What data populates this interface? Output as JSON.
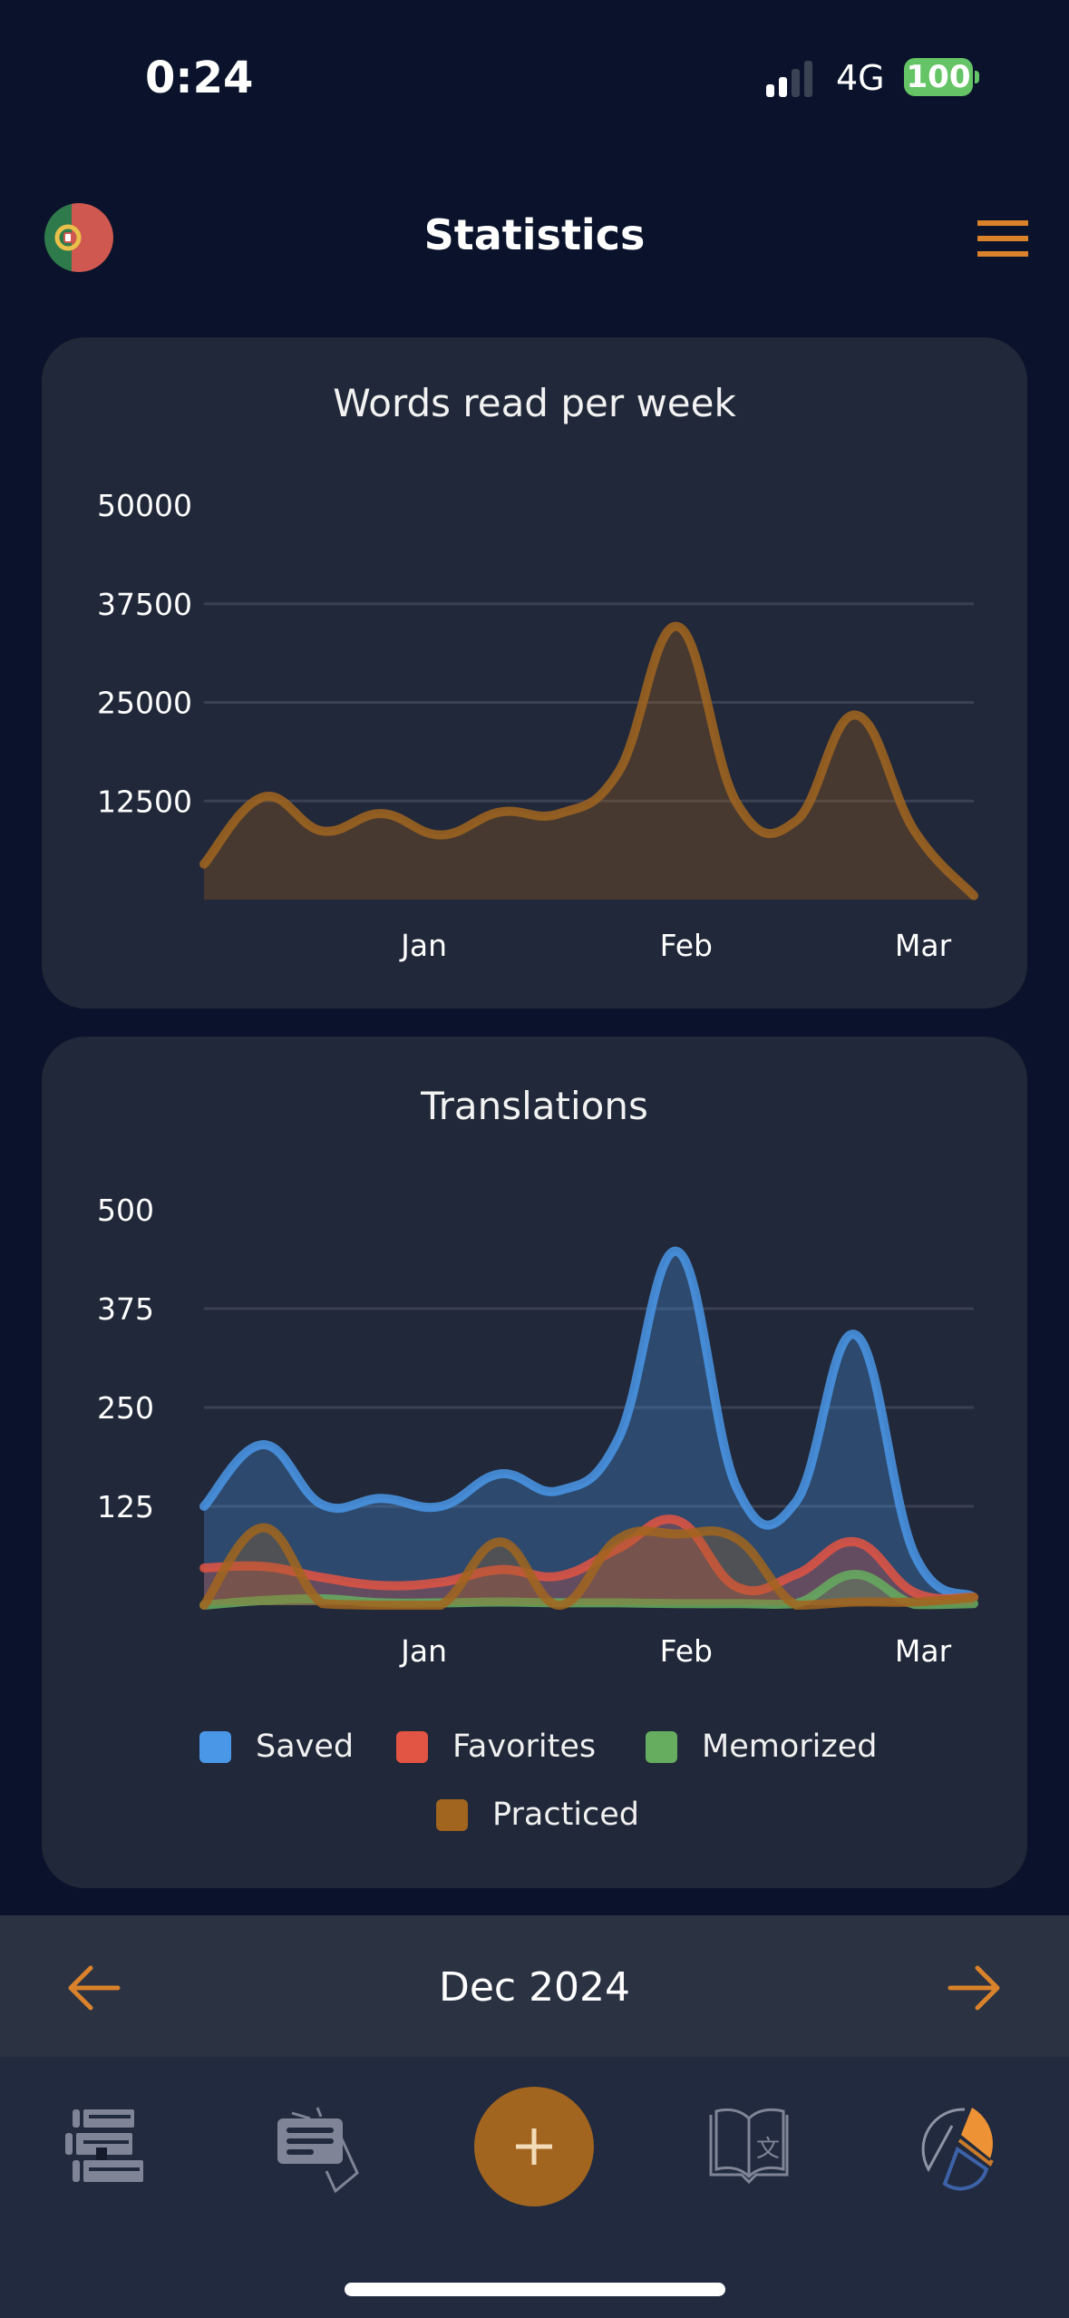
{
  "status_bar": {
    "time": "0:24",
    "network": "4G",
    "battery": "100",
    "signal_bars_active": 2,
    "signal_bars_total": 4
  },
  "header": {
    "title": "Statistics",
    "language_flag": "portugal-flag-icon",
    "menu_icon": "hamburger-menu-icon"
  },
  "colors": {
    "accent": "#d9822b",
    "background": "#0a132b",
    "card": "#212839"
  },
  "chart_data": [
    {
      "type": "area",
      "title": "Words read per week",
      "x": [
        "2024-12-06",
        "2024-12-13",
        "2024-12-20",
        "2024-12-27",
        "2025-01-03",
        "2025-01-10",
        "2025-01-17",
        "2025-01-24",
        "2025-01-31",
        "2025-02-07",
        "2025-02-14",
        "2025-02-21",
        "2025-02-28",
        "2025-03-07"
      ],
      "x_tick_labels": [
        {
          "date": "2025-01-01",
          "label": "Jan"
        },
        {
          "date": "2025-02-01",
          "label": "Feb"
        },
        {
          "date": "2025-03-01",
          "label": "Mar"
        }
      ],
      "y_ticks": [
        12500,
        25000,
        37500,
        50000
      ],
      "ylim": [
        0,
        50000
      ],
      "grid": true,
      "series": [
        {
          "color": "#a1651f",
          "values": [
            4500,
            13000,
            8700,
            10900,
            8200,
            11100,
            10900,
            16200,
            34600,
            12200,
            10000,
            23400,
            8700,
            500
          ]
        }
      ]
    },
    {
      "type": "area",
      "title": "Translations",
      "x": [
        "2024-12-06",
        "2024-12-13",
        "2024-12-20",
        "2024-12-27",
        "2025-01-03",
        "2025-01-10",
        "2025-01-17",
        "2025-01-24",
        "2025-01-31",
        "2025-02-07",
        "2025-02-14",
        "2025-02-21",
        "2025-02-28",
        "2025-03-07"
      ],
      "x_tick_labels": [
        {
          "date": "2025-01-01",
          "label": "Jan"
        },
        {
          "date": "2025-02-01",
          "label": "Feb"
        },
        {
          "date": "2025-03-01",
          "label": "Mar"
        }
      ],
      "y_ticks": [
        125,
        250,
        375,
        500
      ],
      "ylim": [
        0,
        500
      ],
      "grid": true,
      "legend": "bottom",
      "series": [
        {
          "name": "Saved",
          "color": "#4a97e8",
          "values": [
            125,
            203,
            127,
            135,
            125,
            166,
            145,
            211,
            447,
            148,
            131,
            342,
            64,
            10
          ]
        },
        {
          "name": "Favorites",
          "color": "#e25443",
          "values": [
            47,
            49,
            35,
            25,
            29,
            45,
            37,
            72,
            107,
            23,
            39,
            80,
            16,
            10
          ]
        },
        {
          "name": "Memorized",
          "color": "#66ad5f",
          "values": [
            0,
            6,
            8,
            3,
            3,
            4,
            3,
            3,
            2,
            2,
            2,
            39,
            1,
            2
          ]
        },
        {
          "name": "Practiced",
          "color": "#a1651f",
          "values": [
            0,
            98,
            2,
            0,
            0,
            80,
            0,
            84,
            90,
            84,
            0,
            4,
            4,
            10
          ]
        }
      ]
    }
  ],
  "period_selector": {
    "label": "Dec 2024",
    "prev_icon": "arrow-left-icon",
    "next_icon": "arrow-right-icon"
  },
  "bottom_nav": {
    "items": [
      {
        "icon": "books-library-icon"
      },
      {
        "icon": "flashcards-icon"
      },
      {
        "icon": "add-plus-icon"
      },
      {
        "icon": "book-translate-icon"
      },
      {
        "icon": "statistics-pie-icon",
        "active": true
      }
    ]
  }
}
